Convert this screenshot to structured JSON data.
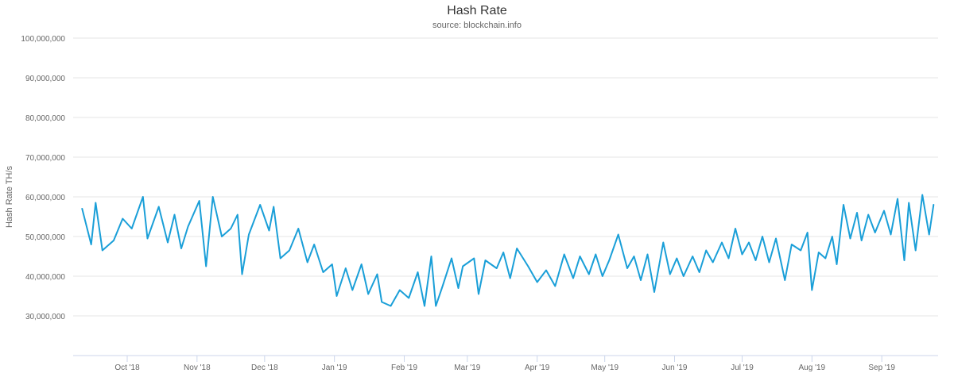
{
  "chart_data": {
    "type": "line",
    "title": "Hash Rate",
    "subtitle": "source: blockchain.info",
    "ylabel": "Hash Rate TH/s",
    "xlabel": "",
    "ylim": [
      20000000,
      100000000
    ],
    "y_ticks": [
      30000000,
      40000000,
      50000000,
      60000000,
      70000000,
      80000000,
      90000000,
      100000000
    ],
    "y_tick_labels": [
      "30,000,000",
      "40,000,000",
      "50,000,000",
      "60,000,000",
      "70,000,000",
      "80,000,000",
      "90,000,000",
      "100,000,000"
    ],
    "xlim": [
      "2018-09-07",
      "2019-09-26"
    ],
    "x_ticks": [
      "2018-10-01",
      "2018-11-01",
      "2018-12-01",
      "2019-01-01",
      "2019-02-01",
      "2019-03-01",
      "2019-04-01",
      "2019-05-01",
      "2019-06-01",
      "2019-07-01",
      "2019-08-01",
      "2019-09-01"
    ],
    "x_tick_labels": [
      "Oct '18",
      "Nov '18",
      "Dec '18",
      "Jan '19",
      "Feb '19",
      "Mar '19",
      "Apr '19",
      "May '19",
      "Jun '19",
      "Jul '19",
      "Aug '19",
      "Sep '19"
    ],
    "grid": true,
    "legend": "none",
    "series": [
      {
        "color": "#1a9fd8",
        "points": [
          [
            "2018-09-11",
            57000000
          ],
          [
            "2018-09-15",
            48000000
          ],
          [
            "2018-09-17",
            58500000
          ],
          [
            "2018-09-20",
            46500000
          ],
          [
            "2018-09-25",
            49000000
          ],
          [
            "2018-09-29",
            54500000
          ],
          [
            "2018-10-03",
            52000000
          ],
          [
            "2018-10-08",
            60000000
          ],
          [
            "2018-10-10",
            49500000
          ],
          [
            "2018-10-15",
            57500000
          ],
          [
            "2018-10-19",
            48500000
          ],
          [
            "2018-10-22",
            55500000
          ],
          [
            "2018-10-25",
            47000000
          ],
          [
            "2018-10-28",
            52500000
          ],
          [
            "2018-11-02",
            59000000
          ],
          [
            "2018-11-05",
            42500000
          ],
          [
            "2018-11-08",
            60000000
          ],
          [
            "2018-11-12",
            50000000
          ],
          [
            "2018-11-16",
            52000000
          ],
          [
            "2018-11-19",
            55500000
          ],
          [
            "2018-11-21",
            40500000
          ],
          [
            "2018-11-24",
            50500000
          ],
          [
            "2018-11-29",
            58000000
          ],
          [
            "2018-12-03",
            51500000
          ],
          [
            "2018-12-05",
            57500000
          ],
          [
            "2018-12-08",
            44500000
          ],
          [
            "2018-12-12",
            46500000
          ],
          [
            "2018-12-16",
            52000000
          ],
          [
            "2018-12-20",
            43500000
          ],
          [
            "2018-12-23",
            48000000
          ],
          [
            "2018-12-27",
            41000000
          ],
          [
            "2018-12-31",
            43000000
          ],
          [
            "2019-01-02",
            35000000
          ],
          [
            "2019-01-06",
            42000000
          ],
          [
            "2019-01-09",
            36500000
          ],
          [
            "2019-01-13",
            43000000
          ],
          [
            "2019-01-16",
            35500000
          ],
          [
            "2019-01-20",
            40500000
          ],
          [
            "2019-01-22",
            33500000
          ],
          [
            "2019-01-26",
            32500000
          ],
          [
            "2019-01-30",
            36500000
          ],
          [
            "2019-02-03",
            34500000
          ],
          [
            "2019-02-07",
            41000000
          ],
          [
            "2019-02-10",
            32500000
          ],
          [
            "2019-02-13",
            45000000
          ],
          [
            "2019-02-15",
            32500000
          ],
          [
            "2019-02-18",
            37500000
          ],
          [
            "2019-02-22",
            44500000
          ],
          [
            "2019-02-25",
            37000000
          ],
          [
            "2019-02-27",
            42500000
          ],
          [
            "2019-03-04",
            44500000
          ],
          [
            "2019-03-06",
            35500000
          ],
          [
            "2019-03-09",
            44000000
          ],
          [
            "2019-03-14",
            42000000
          ],
          [
            "2019-03-17",
            46000000
          ],
          [
            "2019-03-20",
            39500000
          ],
          [
            "2019-03-23",
            47000000
          ],
          [
            "2019-03-28",
            42500000
          ],
          [
            "2019-04-01",
            38500000
          ],
          [
            "2019-04-05",
            41500000
          ],
          [
            "2019-04-09",
            37500000
          ],
          [
            "2019-04-13",
            45500000
          ],
          [
            "2019-04-17",
            39500000
          ],
          [
            "2019-04-20",
            45000000
          ],
          [
            "2019-04-24",
            40500000
          ],
          [
            "2019-04-27",
            45500000
          ],
          [
            "2019-04-30",
            40000000
          ],
          [
            "2019-05-03",
            44000000
          ],
          [
            "2019-05-07",
            50500000
          ],
          [
            "2019-05-11",
            42000000
          ],
          [
            "2019-05-14",
            45000000
          ],
          [
            "2019-05-17",
            39000000
          ],
          [
            "2019-05-20",
            45500000
          ],
          [
            "2019-05-23",
            36000000
          ],
          [
            "2019-05-27",
            48500000
          ],
          [
            "2019-05-30",
            40500000
          ],
          [
            "2019-06-02",
            44500000
          ],
          [
            "2019-06-05",
            40000000
          ],
          [
            "2019-06-09",
            45000000
          ],
          [
            "2019-06-12",
            41000000
          ],
          [
            "2019-06-15",
            46500000
          ],
          [
            "2019-06-18",
            43500000
          ],
          [
            "2019-06-22",
            48500000
          ],
          [
            "2019-06-25",
            44500000
          ],
          [
            "2019-06-28",
            52000000
          ],
          [
            "2019-07-01",
            45500000
          ],
          [
            "2019-07-04",
            48500000
          ],
          [
            "2019-07-07",
            44000000
          ],
          [
            "2019-07-10",
            50000000
          ],
          [
            "2019-07-13",
            43500000
          ],
          [
            "2019-07-16",
            49500000
          ],
          [
            "2019-07-20",
            39000000
          ],
          [
            "2019-07-23",
            48000000
          ],
          [
            "2019-07-27",
            46500000
          ],
          [
            "2019-07-30",
            51000000
          ],
          [
            "2019-08-01",
            36500000
          ],
          [
            "2019-08-04",
            46000000
          ],
          [
            "2019-08-07",
            44500000
          ],
          [
            "2019-08-10",
            50000000
          ],
          [
            "2019-08-12",
            43000000
          ],
          [
            "2019-08-15",
            58000000
          ],
          [
            "2019-08-18",
            49500000
          ],
          [
            "2019-08-21",
            56000000
          ],
          [
            "2019-08-23",
            49000000
          ],
          [
            "2019-08-26",
            55500000
          ],
          [
            "2019-08-29",
            51000000
          ],
          [
            "2019-09-02",
            56500000
          ],
          [
            "2019-09-05",
            50500000
          ],
          [
            "2019-09-08",
            59500000
          ],
          [
            "2019-09-11",
            44000000
          ],
          [
            "2019-09-13",
            58500000
          ],
          [
            "2019-09-16",
            46500000
          ],
          [
            "2019-09-19",
            60500000
          ],
          [
            "2019-09-22",
            50500000
          ],
          [
            "2019-09-24",
            58000000
          ]
        ]
      }
    ]
  }
}
